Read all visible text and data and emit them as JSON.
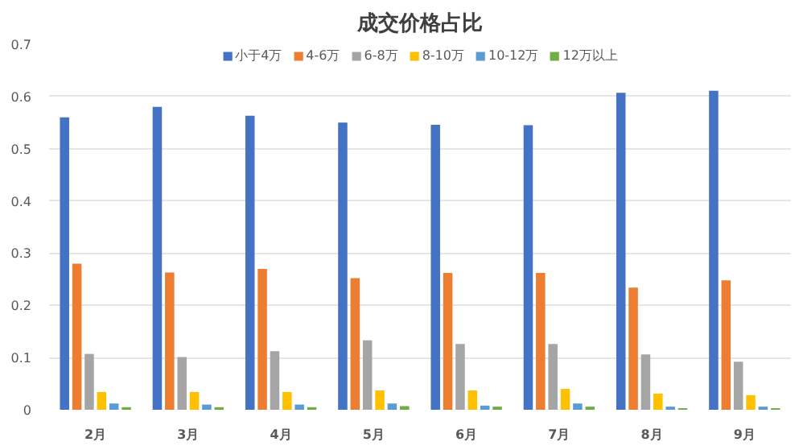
{
  "chart_data": {
    "type": "bar",
    "title": "成交价格占比",
    "categories": [
      "2月",
      "3月",
      "4月",
      "5月",
      "6月",
      "7月",
      "8月",
      "9月"
    ],
    "series": [
      {
        "name": "小于4万",
        "color": "#4472c4",
        "values": [
          0.56,
          0.58,
          0.563,
          0.55,
          0.546,
          0.545,
          0.607,
          0.611
        ]
      },
      {
        "name": "4-6万",
        "color": "#ed7d31",
        "values": [
          0.28,
          0.263,
          0.27,
          0.252,
          0.262,
          0.262,
          0.234,
          0.248
        ]
      },
      {
        "name": "6-8万",
        "color": "#a5a5a5",
        "values": [
          0.107,
          0.101,
          0.112,
          0.133,
          0.126,
          0.126,
          0.106,
          0.092
        ]
      },
      {
        "name": "8-10万",
        "color": "#ffc000",
        "values": [
          0.034,
          0.034,
          0.034,
          0.037,
          0.037,
          0.04,
          0.031,
          0.028
        ]
      },
      {
        "name": "10-12万",
        "color": "#5b9bd5",
        "values": [
          0.012,
          0.01,
          0.01,
          0.012,
          0.008,
          0.012,
          0.006,
          0.006
        ]
      },
      {
        "name": "12万以上",
        "color": "#70ad47",
        "values": [
          0.005,
          0.005,
          0.005,
          0.007,
          0.006,
          0.006,
          0.003,
          0.003
        ]
      }
    ],
    "ylim": [
      0,
      0.7
    ],
    "yticks": [
      0,
      0.1,
      0.2,
      0.3,
      0.4,
      0.5,
      0.6,
      0.7
    ],
    "grid": "y",
    "legend": "top"
  }
}
